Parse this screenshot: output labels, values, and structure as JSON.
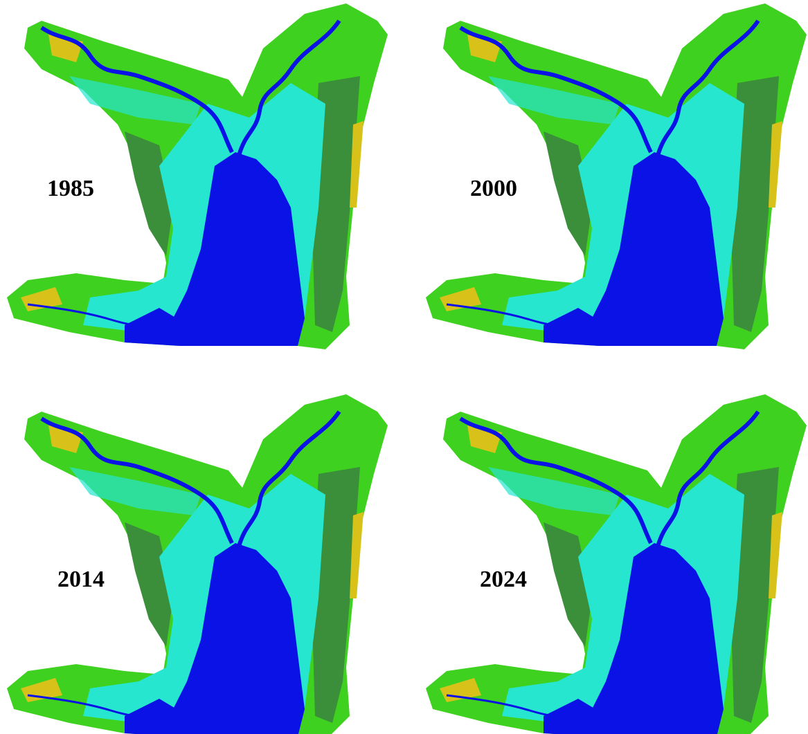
{
  "panels": [
    {
      "label": "1985"
    },
    {
      "label": "2000"
    },
    {
      "label": "2014"
    },
    {
      "label": "2024"
    }
  ]
}
